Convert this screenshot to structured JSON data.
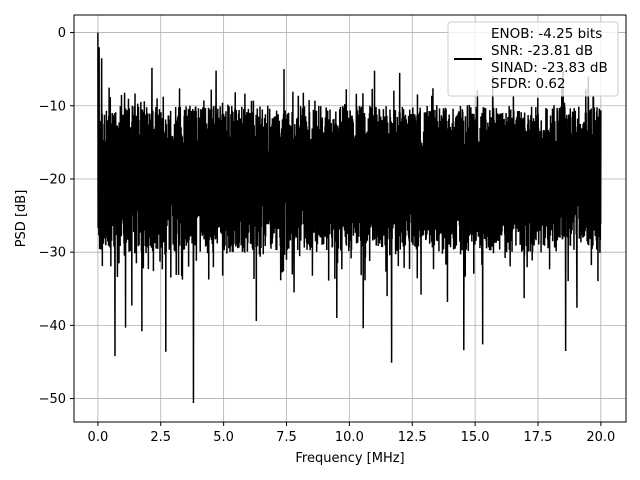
{
  "chart_data": {
    "type": "line",
    "title": "",
    "xlabel": "Frequency [MHz]",
    "ylabel": "PSD [dB]",
    "xlim": [
      -0.95,
      21.0
    ],
    "ylim": [
      -53.2,
      2.4
    ],
    "xticks": [
      0.0,
      2.5,
      5.0,
      7.5,
      10.0,
      12.5,
      15.0,
      17.5,
      20.0
    ],
    "xtick_labels": [
      "0.0",
      "2.5",
      "5.0",
      "7.5",
      "10.0",
      "12.5",
      "15.0",
      "17.5",
      "20.0"
    ],
    "yticks": [
      0,
      -10,
      -20,
      -30,
      -40,
      -50
    ],
    "ytick_labels": [
      "0",
      "−10",
      "−20",
      "−30",
      "−40",
      "−50"
    ],
    "grid": true,
    "legend_position": "top-right",
    "legend_lines": [
      "ENOB: -4.25 bits",
      "SNR: -23.81 dB",
      "SINAD: -23.83 dB",
      "SFDR: 0.62"
    ],
    "series": [
      {
        "color": "#000000",
        "x_range": [
          0.0,
          20.0
        ],
        "typical_upper_envelope": -10,
        "typical_lower_envelope": -27,
        "peaks": [
          {
            "x": 0.0,
            "y": 0.0
          },
          {
            "x": 0.05,
            "y": -2.0
          },
          {
            "x": 0.15,
            "y": -3.5
          },
          {
            "x": 2.15,
            "y": -4.8
          },
          {
            "x": 4.7,
            "y": -5.2
          },
          {
            "x": 7.4,
            "y": -5.0
          },
          {
            "x": 11.0,
            "y": -5.2
          },
          {
            "x": 12.0,
            "y": -5.5
          },
          {
            "x": 15.7,
            "y": -6.0
          },
          {
            "x": 18.5,
            "y": -5.3
          },
          {
            "x": 19.5,
            "y": -6.0
          }
        ],
        "dips": [
          {
            "x": 0.68,
            "y": -44.2
          },
          {
            "x": 1.1,
            "y": -40.3
          },
          {
            "x": 1.35,
            "y": -37.3
          },
          {
            "x": 1.75,
            "y": -40.8
          },
          {
            "x": 2.7,
            "y": -43.6
          },
          {
            "x": 3.8,
            "y": -50.6
          },
          {
            "x": 6.3,
            "y": -39.4
          },
          {
            "x": 7.8,
            "y": -35.5
          },
          {
            "x": 9.5,
            "y": -39.0
          },
          {
            "x": 10.55,
            "y": -40.4
          },
          {
            "x": 11.5,
            "y": -36.0
          },
          {
            "x": 11.68,
            "y": -45.1
          },
          {
            "x": 12.85,
            "y": -35.8
          },
          {
            "x": 13.9,
            "y": -36.8
          },
          {
            "x": 14.55,
            "y": -43.4
          },
          {
            "x": 15.3,
            "y": -42.6
          },
          {
            "x": 16.95,
            "y": -36.3
          },
          {
            "x": 18.6,
            "y": -43.5
          },
          {
            "x": 19.05,
            "y": -37.6
          }
        ]
      }
    ]
  }
}
